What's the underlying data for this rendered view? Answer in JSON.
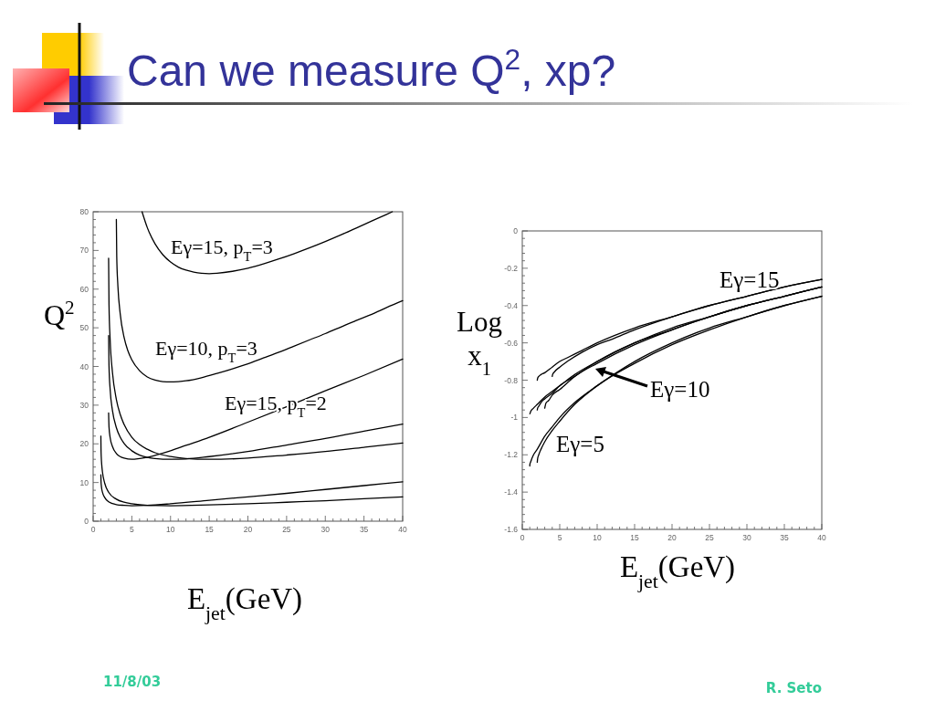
{
  "chart_data": [
    {
      "type": "line",
      "title": "Can we measure Q$^{2}$, xp?",
      "xlabel": "E$_{jet}$(GeV)",
      "ylabel": "Q$^{2}$",
      "xlim": [
        0,
        40
      ],
      "ylim": [
        0,
        80
      ],
      "xticks": [
        0,
        {
          "value": 1,
          "label": null
        },
        {
          "value": 2,
          "label": null
        },
        {
          "value": 3,
          "label": null
        },
        {
          "value": 4,
          "label": null
        },
        5,
        {
          "value": 6,
          "label": null
        },
        {
          "value": 7,
          "label": null
        },
        {
          "value": 8,
          "label": null
        },
        {
          "value": 9,
          "label": null
        },
        10,
        {
          "value": 11,
          "label": null
        },
        {
          "value": 12,
          "label": null
        },
        {
          "value": 13,
          "label": null
        },
        {
          "value": 14,
          "label": null
        },
        15,
        {
          "value": 16,
          "label": null
        },
        {
          "value": 17,
          "label": null
        },
        {
          "value": 18,
          "label": null
        },
        {
          "value": 19,
          "label": null
        },
        20,
        {
          "value": 21,
          "label": null
        },
        {
          "value": 22,
          "label": null
        },
        {
          "value": 23,
          "label": null
        },
        {
          "value": 24,
          "label": null
        },
        25,
        {
          "value": 26,
          "label": null
        },
        {
          "value": 27,
          "label": null
        },
        {
          "value": 28,
          "label": null
        },
        {
          "value": 29,
          "label": null
        },
        30,
        {
          "value": 31,
          "label": null
        },
        {
          "value": 32,
          "label": null
        },
        {
          "value": 33,
          "label": null
        },
        {
          "value": 34,
          "label": null
        },
        35,
        {
          "value": 36,
          "label": null
        },
        {
          "value": 37,
          "label": null
        },
        {
          "value": 38,
          "label": null
        },
        {
          "value": 39,
          "label": null
        },
        40
      ],
      "yticks": [
        0,
        {
          "value": 2,
          "label": null
        },
        {
          "value": 4,
          "label": null
        },
        {
          "value": 6,
          "label": null
        },
        {
          "value": 8,
          "label": null
        },
        10,
        {
          "value": 12,
          "label": null
        },
        {
          "value": 14,
          "label": null
        },
        {
          "value": 16,
          "label": null
        },
        {
          "value": 18,
          "label": null
        },
        20,
        {
          "value": 22,
          "label": null
        },
        {
          "value": 24,
          "label": null
        },
        {
          "value": 26,
          "label": null
        },
        {
          "value": 28,
          "label": null
        },
        30,
        {
          "value": 32,
          "label": null
        },
        {
          "value": 34,
          "label": null
        },
        {
          "value": 36,
          "label": null
        },
        {
          "value": 38,
          "label": null
        },
        40,
        {
          "value": 42,
          "label": null
        },
        {
          "value": 44,
          "label": null
        },
        {
          "value": 46,
          "label": null
        },
        {
          "value": 48,
          "label": null
        },
        50,
        {
          "value": 52,
          "label": null
        },
        {
          "value": 54,
          "label": null
        },
        {
          "value": 56,
          "label": null
        },
        {
          "value": 58,
          "label": null
        },
        60,
        {
          "value": 62,
          "label": null
        },
        {
          "value": 64,
          "label": null
        },
        {
          "value": 66,
          "label": null
        },
        {
          "value": 68,
          "label": null
        },
        70,
        {
          "value": 72,
          "label": null
        },
        {
          "value": 74,
          "label": null
        },
        {
          "value": 76,
          "label": null
        },
        {
          "value": 78,
          "label": null
        },
        80
      ],
      "series": [
        {
          "color": "#000000",
          "x": [
            6.32,
            7,
            8,
            9,
            10,
            11,
            12,
            13,
            14,
            15,
            16,
            18,
            20,
            22,
            24,
            26,
            28,
            30,
            32,
            34,
            36,
            38,
            38.66
          ],
          "values": [
            80,
            75.9,
            71.7,
            68.9,
            67,
            65.7,
            64.9,
            64.4,
            64.1,
            64,
            64.1,
            64.6,
            65.4,
            66.5,
            67.8,
            69.2,
            70.7,
            72.3,
            74,
            75.8,
            77.6,
            79.4,
            80
          ]
        },
        {
          "color": "#000000",
          "x": [
            3,
            3.05,
            3.2,
            3.5,
            4,
            4.5,
            5,
            6,
            7,
            8,
            9,
            10,
            11,
            12,
            14,
            16,
            18,
            20,
            22,
            24,
            26,
            28,
            30,
            32,
            34,
            36,
            38,
            40
          ],
          "values": [
            78,
            68.5,
            60.8,
            53.6,
            47.5,
            44,
            41.7,
            38.9,
            37.3,
            36.5,
            36.1,
            36,
            36.1,
            36.3,
            37.1,
            38.2,
            39.4,
            40.7,
            42.2,
            43.7,
            45.3,
            46.9,
            48.5,
            50.2,
            51.9,
            53.5,
            55.3,
            57
          ]
        },
        {
          "color": "#000000",
          "x": [
            2,
            2.05,
            2.2,
            2.5,
            3,
            3.5,
            4,
            5,
            6,
            7,
            8,
            10,
            12,
            15,
            20,
            25,
            30,
            35,
            40
          ],
          "values": [
            28,
            24.4,
            21.6,
            19.3,
            17.5,
            16.7,
            16.3,
            16,
            16.2,
            16.5,
            17,
            18.2,
            19.6,
            21.7,
            25.6,
            29.6,
            33.7,
            37.7,
            41.9
          ]
        },
        {
          "color": "#000000",
          "x": [
            2,
            2.05,
            2.2,
            2.5,
            3,
            3.5,
            4,
            5,
            6,
            7,
            8,
            10,
            12,
            15,
            20,
            25,
            30,
            35,
            40
          ],
          "values": [
            48,
            40.2,
            34,
            28.6,
            24.2,
            21.7,
            20.1,
            18.2,
            17.1,
            16.5,
            16.2,
            16,
            16.1,
            16.7,
            18,
            19.7,
            21.4,
            23.3,
            25.1
          ]
        },
        {
          "color": "#000000",
          "x": [
            2,
            2.05,
            2.2,
            2.5,
            3,
            3.5,
            4,
            5,
            6,
            7,
            8,
            10,
            12,
            15,
            20,
            25,
            30,
            35,
            40
          ],
          "values": [
            68,
            56.1,
            46.8,
            38.4,
            31.5,
            27.6,
            25,
            21.7,
            19.8,
            18.6,
            17.7,
            16.7,
            16.2,
            16,
            16.3,
            17.1,
            18,
            19.1,
            20.2
          ]
        },
        {
          "color": "#000000",
          "x": [
            1,
            1.02,
            1.05,
            1.1,
            1.2,
            1.5,
            2,
            3,
            4,
            5,
            7,
            10,
            15,
            20,
            25,
            30,
            35,
            40
          ],
          "values": [
            12,
            10.2,
            9.4,
            8.5,
            7.5,
            6.1,
            5,
            4.3,
            4.1,
            4,
            4.1,
            4.5,
            5.4,
            6.3,
            7.2,
            8.2,
            9.2,
            10.2
          ]
        },
        {
          "color": "#000000",
          "x": [
            1,
            1.02,
            1.05,
            1.1,
            1.2,
            1.5,
            2,
            3,
            4,
            5,
            7,
            10,
            15,
            20,
            25,
            30,
            35,
            40
          ],
          "values": [
            22,
            18.4,
            16.6,
            14.9,
            12.8,
            9.8,
            7.5,
            5.7,
            4.9,
            4.5,
            4.1,
            4,
            4.2,
            4.5,
            4.9,
            5.3,
            5.8,
            6.3
          ]
        }
      ],
      "annotations": [
        "Eγ=15, p$_{T}$=3",
        "Eγ=10, p$_{T}$=3",
        "Eγ=15, p$_{T}$=2",
        "11/8/03"
      ]
    },
    {
      "type": "line",
      "xlabel": "E$_{jet}$(GeV)",
      "ylabel": "Log x$_{1}$",
      "xlim": [
        0,
        40
      ],
      "ylim": [
        -1.6,
        0
      ],
      "xticks": [
        0,
        {
          "value": 1,
          "label": null
        },
        {
          "value": 2,
          "label": null
        },
        {
          "value": 3,
          "label": null
        },
        {
          "value": 4,
          "label": null
        },
        5,
        {
          "value": 6,
          "label": null
        },
        {
          "value": 7,
          "label": null
        },
        {
          "value": 8,
          "label": null
        },
        {
          "value": 9,
          "label": null
        },
        10,
        {
          "value": 11,
          "label": null
        },
        {
          "value": 12,
          "label": null
        },
        {
          "value": 13,
          "label": null
        },
        {
          "value": 14,
          "label": null
        },
        15,
        {
          "value": 16,
          "label": null
        },
        {
          "value": 17,
          "label": null
        },
        {
          "value": 18,
          "label": null
        },
        {
          "value": 19,
          "label": null
        },
        20,
        {
          "value": 21,
          "label": null
        },
        {
          "value": 22,
          "label": null
        },
        {
          "value": 23,
          "label": null
        },
        {
          "value": 24,
          "label": null
        },
        25,
        {
          "value": 26,
          "label": null
        },
        {
          "value": 27,
          "label": null
        },
        {
          "value": 28,
          "label": null
        },
        {
          "value": 29,
          "label": null
        },
        30,
        {
          "value": 31,
          "label": null
        },
        {
          "value": 32,
          "label": null
        },
        {
          "value": 33,
          "label": null
        },
        {
          "value": 34,
          "label": null
        },
        35,
        {
          "value": 36,
          "label": null
        },
        {
          "value": 37,
          "label": null
        },
        {
          "value": 38,
          "label": null
        },
        {
          "value": 39,
          "label": null
        },
        40
      ],
      "yticks": [
        -1.6,
        {
          "value": -1.56,
          "label": null
        },
        {
          "value": -1.52,
          "label": null
        },
        {
          "value": -1.48,
          "label": null
        },
        {
          "value": -1.44,
          "label": null
        },
        -1.4,
        {
          "value": -1.36,
          "label": null
        },
        {
          "value": -1.32,
          "label": null
        },
        {
          "value": -1.28,
          "label": null
        },
        {
          "value": -1.24,
          "label": null
        },
        -1.2,
        {
          "value": -1.16,
          "label": null
        },
        {
          "value": -1.12,
          "label": null
        },
        {
          "value": -1.08,
          "label": null
        },
        {
          "value": -1.04,
          "label": null
        },
        -1,
        {
          "value": -0.96,
          "label": null
        },
        {
          "value": -0.92,
          "label": null
        },
        {
          "value": -0.88,
          "label": null
        },
        {
          "value": -0.84,
          "label": null
        },
        -0.8,
        {
          "value": -0.76,
          "label": null
        },
        {
          "value": -0.72,
          "label": null
        },
        {
          "value": -0.68,
          "label": null
        },
        {
          "value": -0.64,
          "label": null
        },
        -0.6,
        {
          "value": -0.56,
          "label": null
        },
        {
          "value": -0.52,
          "label": null
        },
        {
          "value": -0.48,
          "label": null
        },
        {
          "value": -0.44,
          "label": null
        },
        -0.4,
        {
          "value": -0.36,
          "label": null
        },
        {
          "value": -0.32,
          "label": null
        },
        {
          "value": -0.28,
          "label": null
        },
        {
          "value": -0.24,
          "label": null
        },
        -0.2,
        {
          "value": -0.16,
          "label": null
        },
        {
          "value": -0.12,
          "label": null
        },
        {
          "value": -0.08,
          "label": null
        },
        {
          "value": -0.04,
          "label": null
        },
        0
      ],
      "series": [
        {
          "color": "#000000",
          "x": [
            4,
            4.05,
            4.2,
            5,
            6,
            8,
            10,
            12,
            15,
            20,
            25,
            30,
            35,
            40
          ],
          "values": [
            -0.78,
            -0.77,
            -0.76,
            -0.73,
            -0.7,
            -0.65,
            -0.61,
            -0.58,
            -0.53,
            -0.46,
            -0.4,
            -0.35,
            -0.3,
            -0.26
          ]
        },
        {
          "color": "#000000",
          "x": [
            2,
            2.05,
            2.2,
            2.5,
            3,
            4,
            5,
            6,
            8,
            10,
            15,
            20,
            25,
            30,
            35,
            40
          ],
          "values": [
            -0.8,
            -0.79,
            -0.78,
            -0.77,
            -0.76,
            -0.73,
            -0.7,
            -0.68,
            -0.64,
            -0.6,
            -0.52,
            -0.46,
            -0.4,
            -0.35,
            -0.3,
            -0.26
          ]
        },
        {
          "color": "#000000",
          "x": [
            1,
            1.02,
            1.1,
            1.5,
            2,
            3,
            4,
            5,
            7,
            10,
            15,
            20,
            25,
            30,
            35,
            40
          ],
          "values": [
            -0.98,
            -0.98,
            -0.97,
            -0.95,
            -0.93,
            -0.89,
            -0.86,
            -0.83,
            -0.77,
            -0.7,
            -0.6,
            -0.52,
            -0.46,
            -0.4,
            -0.35,
            -0.3
          ]
        },
        {
          "color": "#000000",
          "x": [
            2,
            2.05,
            2.2,
            2.5,
            3,
            4,
            5,
            7,
            10,
            15,
            20,
            25,
            30,
            35,
            40
          ],
          "values": [
            -0.96,
            -0.95,
            -0.94,
            -0.92,
            -0.9,
            -0.87,
            -0.83,
            -0.78,
            -0.7,
            -0.6,
            -0.53,
            -0.46,
            -0.4,
            -0.35,
            -0.3
          ]
        },
        {
          "color": "#000000",
          "x": [
            3,
            3.05,
            3.2,
            3.5,
            4,
            5,
            7,
            10,
            15,
            20,
            25,
            30,
            35,
            40
          ],
          "values": [
            -0.95,
            -0.94,
            -0.92,
            -0.91,
            -0.88,
            -0.85,
            -0.78,
            -0.71,
            -0.61,
            -0.53,
            -0.46,
            -0.4,
            -0.35,
            -0.3
          ]
        },
        {
          "color": "#000000",
          "x": [
            1,
            1.02,
            1.1,
            1.5,
            2,
            3,
            4,
            5,
            7,
            10,
            15,
            20,
            25,
            30,
            35,
            40
          ],
          "values": [
            -1.26,
            -1.25,
            -1.24,
            -1.2,
            -1.17,
            -1.1,
            -1.05,
            -1.0,
            -0.92,
            -0.83,
            -0.7,
            -0.6,
            -0.52,
            -0.46,
            -0.4,
            -0.35
          ]
        },
        {
          "color": "#000000",
          "x": [
            2,
            2.05,
            2.2,
            2.5,
            3,
            4,
            5,
            7,
            10,
            15,
            20,
            25,
            30,
            35,
            40
          ],
          "values": [
            -1.24,
            -1.22,
            -1.2,
            -1.17,
            -1.13,
            -1.07,
            -1.02,
            -0.93,
            -0.83,
            -0.71,
            -0.61,
            -0.53,
            -0.46,
            -0.4,
            -0.35
          ]
        }
      ],
      "annotations": [
        "Eγ=15",
        "Eγ=10",
        "Eγ=5",
        "R. Seto"
      ]
    }
  ]
}
